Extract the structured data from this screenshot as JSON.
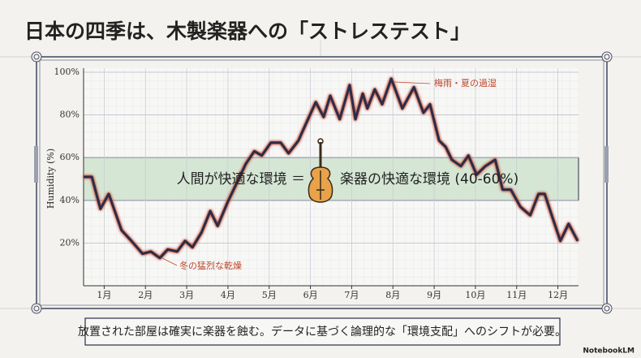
{
  "title": "日本の四季は、木製楽器への「ストレステスト」",
  "chart_data": {
    "type": "line",
    "y_label": "Humidity (%)",
    "xlim": [
      0.5,
      12.5
    ],
    "xticks": [
      {
        "value": 1,
        "label": "1月"
      },
      {
        "value": 2,
        "label": "2月"
      },
      {
        "value": 3,
        "label": "3月"
      },
      {
        "value": 4,
        "label": "4月"
      },
      {
        "value": 5,
        "label": "5月"
      },
      {
        "value": 6,
        "label": "6月"
      },
      {
        "value": 7,
        "label": "7月"
      },
      {
        "value": 8,
        "label": "8月"
      },
      {
        "value": 9,
        "label": "9月"
      },
      {
        "value": 10,
        "label": "10月"
      },
      {
        "value": 11,
        "label": "11月"
      },
      {
        "value": 12,
        "label": "12月"
      }
    ],
    "ylim": [
      0,
      100
    ],
    "yticks": [
      {
        "value": 20,
        "label": "20%"
      },
      {
        "value": 40,
        "label": "40%"
      },
      {
        "value": 60,
        "label": "60%"
      },
      {
        "value": 80,
        "label": "80%"
      },
      {
        "value": 100,
        "label": "100%"
      }
    ],
    "grid": true,
    "x": [
      0.5,
      0.7,
      0.91,
      1.11,
      1.42,
      1.66,
      1.93,
      2.13,
      2.35,
      2.54,
      2.77,
      2.96,
      3.14,
      3.36,
      3.57,
      3.75,
      3.99,
      4.21,
      4.43,
      4.64,
      4.82,
      5.04,
      5.28,
      5.47,
      5.71,
      5.87,
      6.13,
      6.32,
      6.48,
      6.71,
      6.95,
      7.09,
      7.27,
      7.38,
      7.56,
      7.74,
      7.96,
      8.23,
      8.51,
      8.74,
      8.9,
      9.12,
      9.28,
      9.43,
      9.65,
      9.83,
      10.03,
      10.24,
      10.48,
      10.66,
      10.86,
      11.09,
      11.33,
      11.53,
      11.68,
      11.92,
      12.06,
      12.26,
      12.48
    ],
    "series": [
      {
        "name": "Humidity",
        "color": "#2a2d4a",
        "values": [
          51,
          51,
          36,
          43,
          26,
          21,
          15,
          16,
          13,
          17,
          16,
          21,
          18,
          25,
          35,
          28,
          39,
          48,
          57,
          63,
          61,
          67,
          67,
          62,
          68,
          75,
          86,
          79,
          89,
          78,
          94,
          78,
          90,
          83,
          92,
          85,
          97,
          83,
          93,
          81,
          85,
          68,
          65,
          59,
          56,
          61,
          52,
          56,
          59,
          45,
          45,
          37,
          33,
          43,
          43,
          29,
          21,
          29,
          21
        ]
      }
    ],
    "highlight_range": [
      40,
      60
    ],
    "band_label_left": "人間が快適な環境 ＝",
    "band_label_right": "楽器の快適な環境 (40-60%)",
    "annotations": [
      {
        "text": "梅雨・夏の過湿"
      },
      {
        "text": "冬の猛烈な乾燥"
      }
    ]
  },
  "footer": {
    "message": "放置された部屋は確実に楽器を蝕む。データに基づく論理的な「環境支配」へのシフトが必要。",
    "brand": "NotebookLM"
  }
}
